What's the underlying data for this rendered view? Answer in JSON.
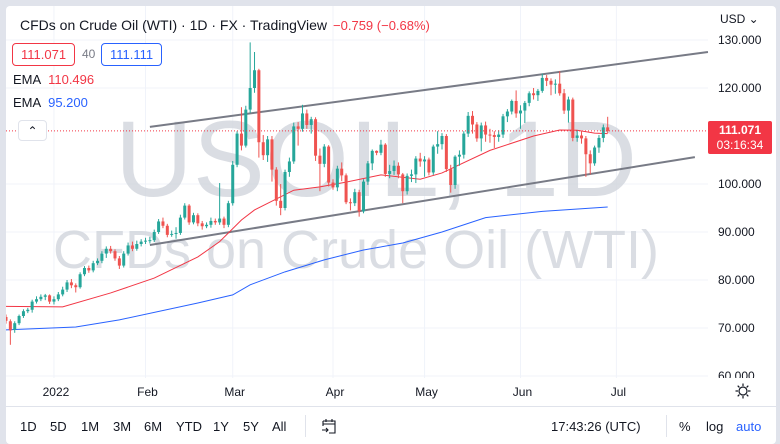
{
  "header": {
    "title": "CFDs on Crude Oil (WTI) · 1D · FX  · TradingView",
    "change": "−0.759 (−0.68%)",
    "sell_price": "111.071",
    "spread": "40",
    "buy_price": "111.111",
    "ema1": {
      "label": "EMA",
      "value": "110.496",
      "color": "#f23645"
    },
    "ema2": {
      "label": "EMA",
      "value": "95.200",
      "color": "#2962ff"
    },
    "collapse_icon": "chevron-up-icon"
  },
  "watermark": {
    "symbol": "USOIL, 1D",
    "description": "CFDs on Crude Oil (WTI)"
  },
  "price_axis": {
    "currency": "USD ⌄",
    "last_price": "111.071",
    "countdown": "03:16:34"
  },
  "time_axis": {
    "settings_icon": "sun-icon"
  },
  "toolbar": {
    "ranges": [
      "1D",
      "5D",
      "1M",
      "3M",
      "6M",
      "YTD",
      "1Y",
      "5Y",
      "All"
    ],
    "goto_icon": "calendar-goto-icon",
    "clock": "17:43:26 (UTC)",
    "percent": "%",
    "log": "log",
    "auto": "auto"
  },
  "colors": {
    "up": "#26a69a",
    "down": "#ef5350",
    "ema_fast": "#f23645",
    "ema_slow": "#2962ff",
    "trendline": "#787b86",
    "accent": "#2962ff"
  },
  "chart_data": {
    "type": "candlestick",
    "ylim": [
      60,
      130
    ],
    "yticks": [
      {
        "v": 130,
        "t": "130.000"
      },
      {
        "v": 120,
        "t": "120.000"
      },
      {
        "v": 100,
        "t": "100.000"
      },
      {
        "v": 90,
        "t": "90.000"
      },
      {
        "v": 80,
        "t": "80.000"
      },
      {
        "v": 70,
        "t": "70.000"
      },
      {
        "v": 60,
        "t": "60.000"
      }
    ],
    "xticks": [
      {
        "d": "2022-01-03",
        "t": "2022"
      },
      {
        "d": "2022-02-01",
        "t": "Feb"
      },
      {
        "d": "2022-03-01",
        "t": "Mar"
      },
      {
        "d": "2022-04-01",
        "t": "Apr"
      },
      {
        "d": "2022-05-02",
        "t": "May"
      },
      {
        "d": "2022-06-01",
        "t": "Jun"
      },
      {
        "d": "2022-07-01",
        "t": "Jul"
      }
    ],
    "grid": true,
    "last_price": 111.071,
    "candles": [
      [
        "2021-12-17",
        72.3,
        72.8,
        70.9,
        71.5
      ],
      [
        "2021-12-20",
        71.4,
        71.8,
        66.5,
        69.5
      ],
      [
        "2021-12-21",
        69.6,
        71.4,
        69.0,
        71.0
      ],
      [
        "2021-12-22",
        71.0,
        72.8,
        70.6,
        72.5
      ],
      [
        "2021-12-23",
        72.5,
        73.9,
        72.1,
        73.5
      ],
      [
        "2021-12-24",
        73.5,
        74.2,
        73.1,
        73.8
      ],
      [
        "2021-12-27",
        73.8,
        75.9,
        73.2,
        75.5
      ],
      [
        "2021-12-28",
        75.5,
        76.6,
        75.1,
        76.0
      ],
      [
        "2021-12-29",
        76.0,
        77.0,
        75.6,
        76.5
      ],
      [
        "2021-12-30",
        76.5,
        77.1,
        75.8,
        76.8
      ],
      [
        "2021-12-31",
        76.8,
        77.0,
        75.0,
        75.5
      ],
      [
        "2022-01-03",
        75.5,
        76.6,
        74.9,
        76.0
      ],
      [
        "2022-01-04",
        76.0,
        77.5,
        75.6,
        77.0
      ],
      [
        "2022-01-05",
        77.0,
        78.6,
        76.6,
        78.0
      ],
      [
        "2022-01-06",
        78.0,
        80.0,
        77.5,
        79.5
      ],
      [
        "2022-01-07",
        79.5,
        80.2,
        78.3,
        78.9
      ],
      [
        "2022-01-10",
        78.9,
        79.3,
        77.4,
        78.5
      ],
      [
        "2022-01-11",
        78.5,
        81.6,
        78.2,
        81.2
      ],
      [
        "2022-01-12",
        81.2,
        82.9,
        80.8,
        82.5
      ],
      [
        "2022-01-13",
        82.5,
        83.0,
        81.5,
        82.0
      ],
      [
        "2022-01-14",
        82.0,
        84.0,
        81.6,
        83.5
      ],
      [
        "2022-01-17",
        83.5,
        84.5,
        83.1,
        84.0
      ],
      [
        "2022-01-18",
        84.0,
        86.0,
        83.5,
        85.5
      ],
      [
        "2022-01-19",
        85.5,
        87.0,
        84.6,
        86.5
      ],
      [
        "2022-01-20",
        86.5,
        87.1,
        85.5,
        86.0
      ],
      [
        "2022-01-21",
        86.0,
        86.4,
        84.0,
        84.5
      ],
      [
        "2022-01-24",
        84.5,
        85.0,
        82.3,
        83.0
      ],
      [
        "2022-01-25",
        83.0,
        86.0,
        82.6,
        85.5
      ],
      [
        "2022-01-26",
        85.5,
        87.8,
        85.1,
        87.2
      ],
      [
        "2022-01-27",
        87.2,
        88.0,
        86.0,
        86.5
      ],
      [
        "2022-01-28",
        86.5,
        88.2,
        86.1,
        87.5
      ],
      [
        "2022-01-31",
        87.5,
        88.5,
        87.0,
        88.0
      ],
      [
        "2022-02-01",
        88.0,
        88.8,
        87.5,
        88.2
      ],
      [
        "2022-02-02",
        88.2,
        89.0,
        87.6,
        88.3
      ],
      [
        "2022-02-03",
        88.3,
        90.5,
        87.9,
        90.0
      ],
      [
        "2022-02-04",
        90.0,
        92.7,
        89.6,
        92.2
      ],
      [
        "2022-02-07",
        92.2,
        93.0,
        90.8,
        91.3
      ],
      [
        "2022-02-08",
        91.3,
        91.7,
        88.9,
        89.4
      ],
      [
        "2022-02-09",
        89.4,
        90.3,
        89.0,
        89.6
      ],
      [
        "2022-02-10",
        89.6,
        91.0,
        88.6,
        89.8
      ],
      [
        "2022-02-11",
        89.8,
        93.6,
        89.4,
        93.0
      ],
      [
        "2022-02-14",
        93.0,
        96.0,
        92.6,
        95.5
      ],
      [
        "2022-02-15",
        95.5,
        95.8,
        91.5,
        92.0
      ],
      [
        "2022-02-16",
        92.0,
        94.0,
        91.6,
        93.5
      ],
      [
        "2022-02-17",
        93.5,
        93.9,
        91.2,
        91.8
      ],
      [
        "2022-02-18",
        91.8,
        92.3,
        90.5,
        91.2
      ],
      [
        "2022-02-21",
        91.2,
        92.0,
        90.8,
        91.5
      ],
      [
        "2022-02-22",
        91.5,
        93.0,
        90.9,
        92.3
      ],
      [
        "2022-02-23",
        92.3,
        92.8,
        91.5,
        92.0
      ],
      [
        "2022-02-24",
        92.0,
        100.2,
        91.5,
        92.8
      ],
      [
        "2022-02-25",
        92.8,
        93.2,
        90.8,
        91.5
      ],
      [
        "2022-02-28",
        91.5,
        96.5,
        91.0,
        96.0
      ],
      [
        "2022-03-01",
        96.0,
        104.8,
        95.5,
        104.0
      ],
      [
        "2022-03-02",
        104.0,
        111.0,
        103.5,
        110.5
      ],
      [
        "2022-03-03",
        110.5,
        116.0,
        107.0,
        108.0
      ],
      [
        "2022-03-04",
        108.0,
        116.3,
        107.6,
        115.5
      ],
      [
        "2022-03-07",
        115.5,
        129.5,
        114.8,
        120.0
      ],
      [
        "2022-03-08",
        120.0,
        127.5,
        119.0,
        123.7
      ],
      [
        "2022-03-09",
        123.7,
        124.0,
        105.5,
        108.7
      ],
      [
        "2022-03-10",
        108.7,
        110.2,
        105.0,
        106.0
      ],
      [
        "2022-03-11",
        106.0,
        110.0,
        104.6,
        109.3
      ],
      [
        "2022-03-14",
        109.3,
        110.0,
        100.5,
        103.0
      ],
      [
        "2022-03-15",
        103.0,
        103.5,
        95.5,
        96.5
      ],
      [
        "2022-03-16",
        96.5,
        100.0,
        93.5,
        95.0
      ],
      [
        "2022-03-17",
        95.0,
        103.0,
        94.5,
        102.5
      ],
      [
        "2022-03-18",
        102.5,
        105.5,
        101.5,
        104.7
      ],
      [
        "2022-03-21",
        104.7,
        112.8,
        104.2,
        112.0
      ],
      [
        "2022-03-22",
        112.0,
        112.9,
        108.0,
        111.5
      ],
      [
        "2022-03-23",
        111.5,
        116.5,
        110.9,
        114.7
      ],
      [
        "2022-03-24",
        114.7,
        115.5,
        111.5,
        112.3
      ],
      [
        "2022-03-25",
        112.3,
        114.0,
        110.5,
        113.5
      ],
      [
        "2022-03-28",
        113.5,
        113.9,
        104.8,
        105.9
      ],
      [
        "2022-03-29",
        105.9,
        107.4,
        98.5,
        104.2
      ],
      [
        "2022-03-30",
        104.2,
        108.3,
        103.5,
        107.8
      ],
      [
        "2022-03-31",
        107.8,
        108.1,
        99.5,
        100.3
      ],
      [
        "2022-04-01",
        100.3,
        101.0,
        98.8,
        99.3
      ],
      [
        "2022-04-04",
        99.3,
        103.8,
        98.5,
        103.2
      ],
      [
        "2022-04-05",
        103.2,
        104.5,
        100.6,
        101.8
      ],
      [
        "2022-04-06",
        101.8,
        102.2,
        95.8,
        96.2
      ],
      [
        "2022-04-07",
        96.2,
        97.0,
        94.5,
        96.0
      ],
      [
        "2022-04-08",
        96.0,
        99.0,
        95.4,
        98.3
      ],
      [
        "2022-04-11",
        98.3,
        98.8,
        93.2,
        94.3
      ],
      [
        "2022-04-12",
        94.3,
        101.0,
        93.9,
        100.5
      ],
      [
        "2022-04-13",
        100.5,
        104.8,
        99.8,
        104.3
      ],
      [
        "2022-04-14",
        104.3,
        107.2,
        102.9,
        106.9
      ],
      [
        "2022-04-15",
        106.9,
        107.0,
        106.0,
        106.5
      ],
      [
        "2022-04-18",
        106.5,
        109.2,
        106.0,
        108.2
      ],
      [
        "2022-04-19",
        108.2,
        108.5,
        101.5,
        102.1
      ],
      [
        "2022-04-20",
        102.1,
        104.0,
        101.2,
        102.7
      ],
      [
        "2022-04-21",
        102.7,
        104.9,
        101.9,
        103.8
      ],
      [
        "2022-04-22",
        103.8,
        104.5,
        101.2,
        102.0
      ],
      [
        "2022-04-25",
        102.0,
        102.3,
        96.0,
        98.5
      ],
      [
        "2022-04-26",
        98.5,
        102.2,
        97.8,
        101.7
      ],
      [
        "2022-04-27",
        101.7,
        103.0,
        100.4,
        102.0
      ],
      [
        "2022-04-28",
        102.0,
        105.8,
        100.2,
        105.3
      ],
      [
        "2022-04-29",
        105.3,
        106.5,
        103.6,
        104.7
      ],
      [
        "2022-05-02",
        104.7,
        105.8,
        101.5,
        105.1
      ],
      [
        "2022-05-03",
        105.1,
        105.5,
        101.8,
        102.4
      ],
      [
        "2022-05-04",
        102.4,
        108.2,
        101.9,
        107.8
      ],
      [
        "2022-05-05",
        107.8,
        111.0,
        106.3,
        108.3
      ],
      [
        "2022-05-06",
        108.3,
        110.6,
        107.2,
        110.0
      ],
      [
        "2022-05-09",
        110.0,
        110.4,
        102.5,
        103.1
      ],
      [
        "2022-05-10",
        103.1,
        104.0,
        98.2,
        99.8
      ],
      [
        "2022-05-11",
        99.8,
        106.0,
        99.0,
        105.7
      ],
      [
        "2022-05-12",
        105.7,
        107.0,
        103.8,
        106.1
      ],
      [
        "2022-05-13",
        106.1,
        111.0,
        105.3,
        110.5
      ],
      [
        "2022-05-16",
        110.5,
        115.0,
        109.8,
        114.2
      ],
      [
        "2022-05-17",
        114.2,
        115.2,
        110.5,
        112.4
      ],
      [
        "2022-05-18",
        112.4,
        112.9,
        108.8,
        109.5
      ],
      [
        "2022-05-19",
        109.5,
        112.8,
        106.8,
        112.2
      ],
      [
        "2022-05-20",
        112.2,
        113.0,
        108.8,
        110.3
      ],
      [
        "2022-05-23",
        110.3,
        111.5,
        108.6,
        110.2
      ],
      [
        "2022-05-24",
        110.2,
        111.0,
        107.5,
        109.8
      ],
      [
        "2022-05-25",
        109.8,
        111.2,
        108.8,
        110.3
      ],
      [
        "2022-05-26",
        110.3,
        114.6,
        109.6,
        114.1
      ],
      [
        "2022-05-27",
        114.1,
        115.6,
        112.9,
        115.1
      ],
      [
        "2022-05-30",
        115.1,
        117.6,
        114.5,
        117.3
      ],
      [
        "2022-05-31",
        117.3,
        119.5,
        113.8,
        114.7
      ],
      [
        "2022-06-01",
        114.7,
        116.4,
        111.5,
        115.3
      ],
      [
        "2022-06-02",
        115.3,
        117.3,
        112.7,
        116.9
      ],
      [
        "2022-06-03",
        116.9,
        119.3,
        116.2,
        118.9
      ],
      [
        "2022-06-06",
        118.9,
        120.0,
        117.6,
        118.5
      ],
      [
        "2022-06-07",
        118.5,
        119.8,
        117.3,
        119.4
      ],
      [
        "2022-06-08",
        119.4,
        123.0,
        119.0,
        122.1
      ],
      [
        "2022-06-09",
        122.1,
        122.7,
        120.4,
        121.5
      ],
      [
        "2022-06-10",
        121.5,
        122.0,
        118.5,
        120.7
      ],
      [
        "2022-06-13",
        120.7,
        121.8,
        118.8,
        120.9
      ],
      [
        "2022-06-14",
        120.9,
        123.5,
        118.4,
        118.9
      ],
      [
        "2022-06-15",
        118.9,
        119.8,
        114.6,
        115.3
      ],
      [
        "2022-06-16",
        115.3,
        118.2,
        112.8,
        117.6
      ],
      [
        "2022-06-17",
        117.6,
        118.0,
        108.9,
        109.6
      ],
      [
        "2022-06-20",
        109.6,
        111.2,
        108.8,
        110.1
      ],
      [
        "2022-06-21",
        110.1,
        111.0,
        108.4,
        109.5
      ],
      [
        "2022-06-22",
        109.5,
        110.0,
        101.5,
        106.2
      ],
      [
        "2022-06-23",
        106.2,
        107.0,
        102.0,
        104.3
      ],
      [
        "2022-06-24",
        104.3,
        108.0,
        103.8,
        107.6
      ],
      [
        "2022-06-27",
        107.6,
        110.2,
        106.5,
        109.6
      ],
      [
        "2022-06-28",
        109.6,
        112.4,
        108.7,
        111.8
      ],
      [
        "2022-06-29",
        111.8,
        114.0,
        110.6,
        111.071
      ]
    ],
    "ema_fast": [
      [
        "2021-12-17",
        74.5
      ],
      [
        "2022-01-05",
        74.4
      ],
      [
        "2022-01-20",
        77.3
      ],
      [
        "2022-02-03",
        80.4
      ],
      [
        "2022-02-17",
        84.8
      ],
      [
        "2022-02-24",
        88.0
      ],
      [
        "2022-03-03",
        92.5
      ],
      [
        "2022-03-08",
        94.6
      ],
      [
        "2022-03-21",
        98.7
      ],
      [
        "2022-03-29",
        99.4
      ],
      [
        "2022-04-06",
        100.4
      ],
      [
        "2022-04-18",
        101.9
      ],
      [
        "2022-04-29",
        101.0
      ],
      [
        "2022-05-06",
        102.3
      ],
      [
        "2022-05-23",
        107.0
      ],
      [
        "2022-06-06",
        110.0
      ],
      [
        "2022-06-14",
        111.25
      ],
      [
        "2022-06-20",
        111.2
      ],
      [
        "2022-06-24",
        110.6
      ],
      [
        "2022-06-29",
        110.496
      ]
    ],
    "ema_slow": [
      [
        "2021-12-17",
        69.6
      ],
      [
        "2022-01-10",
        70.2
      ],
      [
        "2022-01-24",
        71.7
      ],
      [
        "2022-02-17",
        75.2
      ],
      [
        "2022-03-01",
        76.9
      ],
      [
        "2022-03-07",
        79.0
      ],
      [
        "2022-03-17",
        81.7
      ],
      [
        "2022-03-30",
        84.2
      ],
      [
        "2022-04-12",
        86.25
      ],
      [
        "2022-04-25",
        87.7
      ],
      [
        "2022-05-06",
        90.0
      ],
      [
        "2022-05-20",
        93.0
      ],
      [
        "2022-06-08",
        94.3
      ],
      [
        "2022-06-29",
        95.2
      ]
    ],
    "trendlines": [
      {
        "from": [
          "2022-02-02",
          111.9
        ],
        "to": [
          "2022-08-01",
          127.5
        ]
      },
      {
        "from": [
          "2022-02-02",
          87.3
        ],
        "to": [
          "2022-07-27",
          105.6
        ]
      }
    ]
  }
}
